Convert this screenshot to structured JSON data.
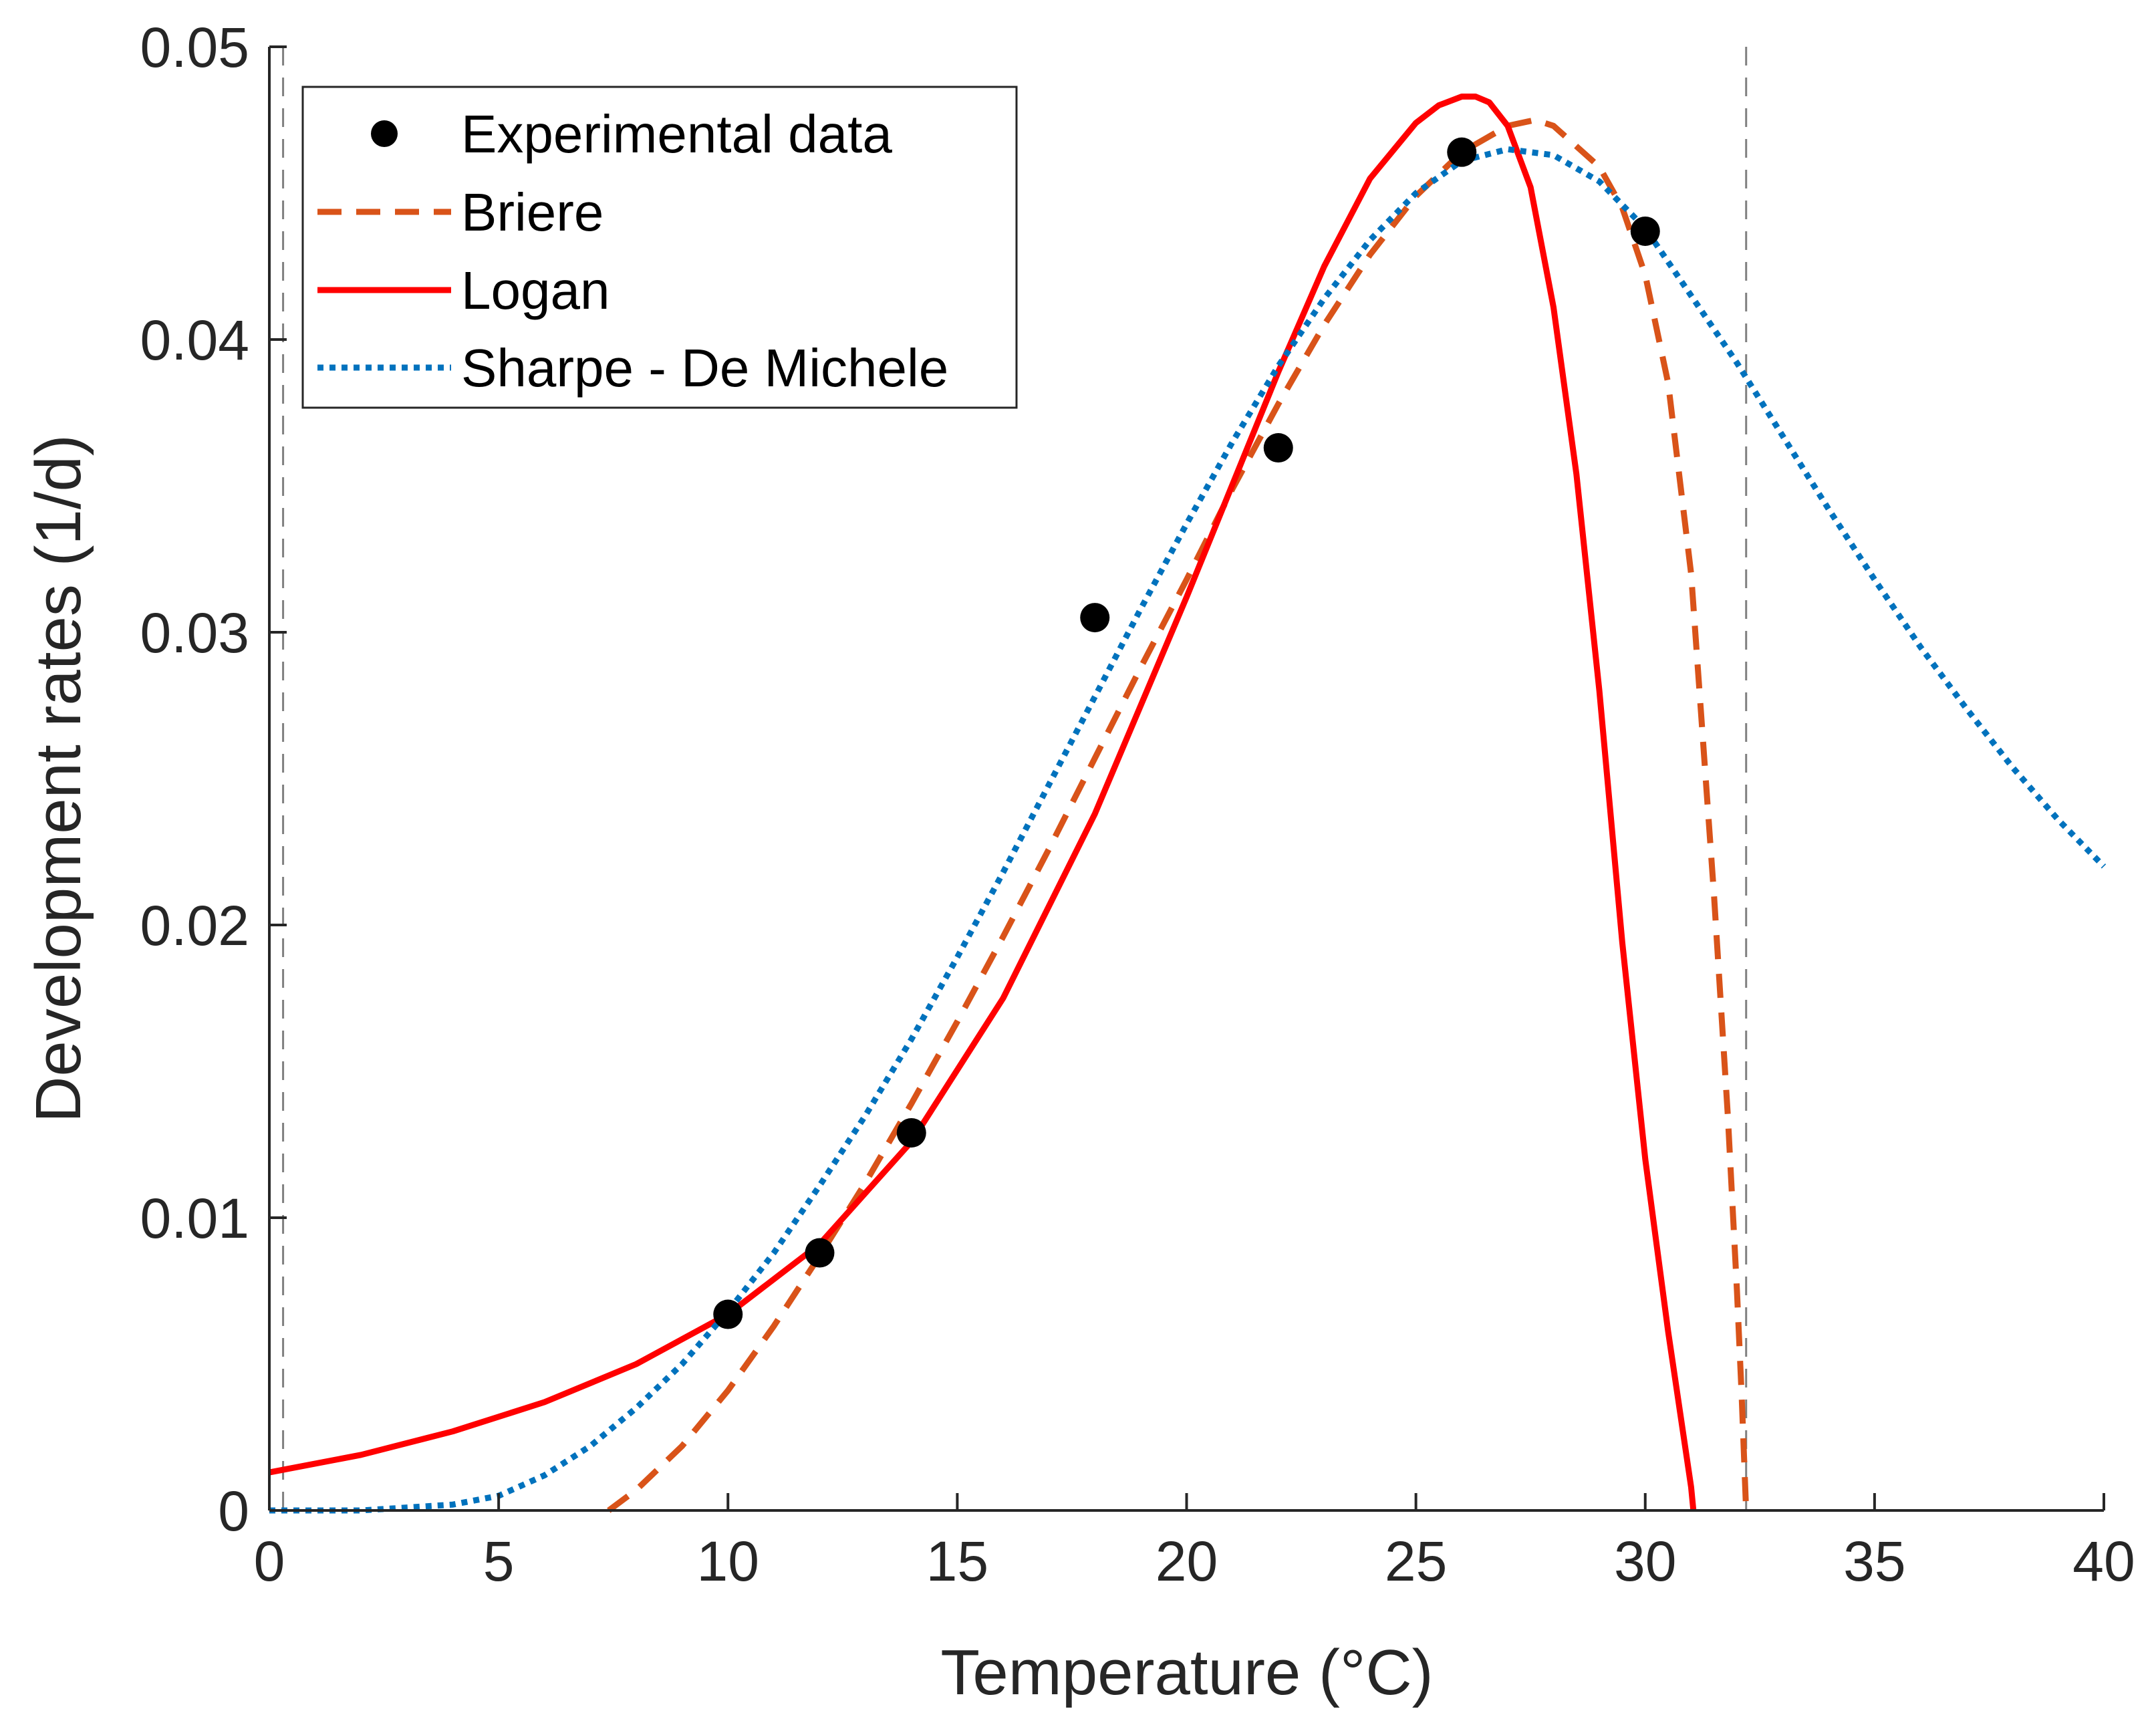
{
  "chart_data": {
    "type": "line",
    "title": "",
    "xlabel": "Temperature (°C)",
    "ylabel": "Development rates (1/d)",
    "xlim": [
      0,
      40
    ],
    "ylim": [
      0,
      0.05
    ],
    "xticks": [
      0,
      5,
      10,
      15,
      20,
      25,
      30,
      35,
      40
    ],
    "xtick_labels": [
      "0",
      "5",
      "10",
      "15",
      "20",
      "25",
      "30",
      "35",
      "40"
    ],
    "yticks": [
      0,
      0.01,
      0.02,
      0.03,
      0.04,
      0.05
    ],
    "ytick_labels": [
      "0",
      "0.01",
      "0.02",
      "0.03",
      "0.04",
      "0.05"
    ],
    "grid": false,
    "legend_position": "top-left",
    "reference_lines": [
      {
        "name": "lower-threshold",
        "x": 0.3,
        "color": "#808080",
        "style": "dashed"
      },
      {
        "name": "upper-threshold",
        "x": 32.2,
        "color": "#808080",
        "style": "dashed"
      }
    ],
    "series": [
      {
        "name": "Experimental data",
        "kind": "scatter",
        "color": "#000000",
        "x": [
          10,
          12,
          14,
          18,
          22,
          26,
          30
        ],
        "y": [
          0.0067,
          0.0088,
          0.0129,
          0.0305,
          0.0363,
          0.0464,
          0.0437
        ]
      },
      {
        "name": "Briere",
        "kind": "line",
        "style": "dashed",
        "color": "#D95319",
        "x": [
          7.4,
          8,
          9,
          10,
          11,
          12,
          13,
          14,
          15,
          16,
          17,
          18,
          19,
          20,
          21,
          22,
          23,
          24,
          25,
          26,
          27,
          27.6,
          28,
          29,
          29.5,
          30,
          30.5,
          31,
          31.5,
          31.8,
          32.0,
          32.1,
          32.2
        ],
        "y": [
          0.0,
          0.0007,
          0.0022,
          0.0041,
          0.0063,
          0.0087,
          0.0112,
          0.0139,
          0.0167,
          0.0196,
          0.0226,
          0.0257,
          0.0288,
          0.0318,
          0.0349,
          0.0378,
          0.0405,
          0.0429,
          0.0449,
          0.0464,
          0.0473,
          0.0475,
          0.0473,
          0.0459,
          0.0445,
          0.0422,
          0.0385,
          0.032,
          0.021,
          0.0135,
          0.0075,
          0.004,
          0.0
        ]
      },
      {
        "name": "Logan",
        "kind": "line",
        "style": "solid",
        "color": "#FF0000",
        "x": [
          0,
          2,
          4,
          6,
          8,
          10,
          12,
          14,
          16,
          18,
          20,
          22,
          23,
          24,
          25,
          25.5,
          26,
          26.3,
          26.6,
          27,
          27.5,
          28,
          28.5,
          29,
          29.5,
          30,
          30.5,
          31,
          31.05
        ],
        "y": [
          0.0013,
          0.0019,
          0.0027,
          0.0037,
          0.005,
          0.0067,
          0.0091,
          0.0126,
          0.0175,
          0.0238,
          0.0312,
          0.0389,
          0.0425,
          0.0455,
          0.0474,
          0.048,
          0.0483,
          0.0483,
          0.0481,
          0.0473,
          0.0452,
          0.0411,
          0.0354,
          0.028,
          0.0194,
          0.012,
          0.0061,
          0.0008,
          0.0
        ]
      },
      {
        "name": "Sharpe - De Michele",
        "kind": "line",
        "style": "dotted",
        "color": "#0072BD",
        "x": [
          0,
          2,
          3,
          4,
          5,
          6,
          7,
          8,
          9,
          10,
          11,
          12,
          13,
          14,
          15,
          16,
          17,
          18,
          19,
          20,
          21,
          22,
          23,
          24,
          25,
          26,
          27,
          28,
          29,
          30,
          31,
          32,
          33,
          34,
          35,
          36,
          37,
          38,
          39,
          40
        ],
        "y": [
          0.0,
          0.0,
          0.0001,
          0.0002,
          0.0005,
          0.0012,
          0.0022,
          0.0035,
          0.005,
          0.0068,
          0.0088,
          0.0111,
          0.0135,
          0.0161,
          0.0189,
          0.0218,
          0.0248,
          0.0278,
          0.0308,
          0.0337,
          0.0365,
          0.0391,
          0.0414,
          0.0434,
          0.045,
          0.0461,
          0.0465,
          0.0463,
          0.0454,
          0.0438,
          0.0415,
          0.0392,
          0.0367,
          0.0342,
          0.0318,
          0.0295,
          0.0274,
          0.0254,
          0.0236,
          0.022
        ]
      }
    ]
  }
}
